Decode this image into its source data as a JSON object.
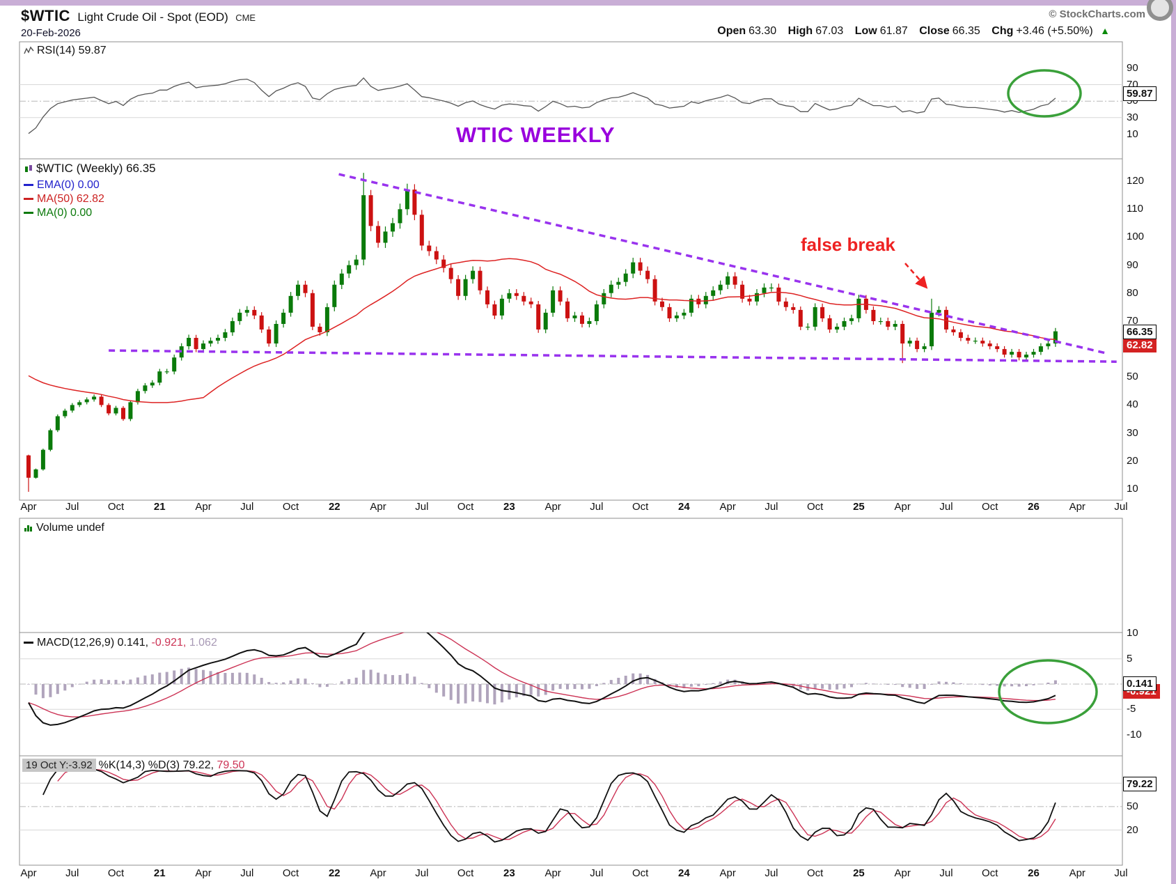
{
  "header": {
    "symbol": "$WTIC",
    "title": "Light Crude Oil - Spot (EOD)",
    "exchange": "CME",
    "credit": "© StockCharts.com",
    "date": "20-Feb-2026",
    "quote": {
      "open_label": "Open",
      "open": "63.30",
      "high_label": "High",
      "high": "67.03",
      "low_label": "Low",
      "low": "61.87",
      "close_label": "Close",
      "close": "66.35",
      "chg_label": "Chg",
      "chg": "+3.46 (+5.50%)"
    }
  },
  "panels": {
    "rsi": {
      "label": "RSI(14) 59.87",
      "last_box": "59.87"
    },
    "price": {
      "title": "$WTIC (Weekly) 66.35",
      "ema_label": "EMA(0) 0.00",
      "ma50_label": "MA(50) 62.82",
      "ma0_label": "MA(0) 0.00",
      "close_box": "66.35",
      "ma_box": "62.82"
    },
    "volume": {
      "label": "Volume undef"
    },
    "macd": {
      "name": "MACD(12,26,9)",
      "v1": "0.141,",
      "v2": "-0.921,",
      "v3": "1.062",
      "last_box": "0.141",
      "signal_box": "-0.921"
    },
    "stoch": {
      "tooltip": "19 Oct Y:-3.92",
      "name": "%K(14,3) %D(3)",
      "v1": "79.22,",
      "v2": "79.50",
      "last_box": "79.22"
    }
  },
  "annotations": {
    "watermark": "WTIC WEEKLY",
    "false_break": "false break"
  },
  "axes": {
    "price_ticks": [
      120,
      110,
      100,
      90,
      80,
      70,
      60,
      50,
      40,
      30,
      20,
      10
    ],
    "rsi_ticks": [
      90,
      70,
      50,
      30,
      10
    ],
    "macd_ticks": [
      10,
      5,
      0,
      -5,
      -10
    ],
    "stoch_ticks": [
      80,
      50,
      20
    ],
    "x_ticks": [
      {
        "m": 0,
        "label": "Apr"
      },
      {
        "m": 3,
        "label": "Jul"
      },
      {
        "m": 6,
        "label": "Oct"
      },
      {
        "m": 9,
        "label": "21",
        "year": true
      },
      {
        "m": 12,
        "label": "Apr"
      },
      {
        "m": 15,
        "label": "Jul"
      },
      {
        "m": 18,
        "label": "Oct"
      },
      {
        "m": 21,
        "label": "22",
        "year": true
      },
      {
        "m": 24,
        "label": "Apr"
      },
      {
        "m": 27,
        "label": "Jul"
      },
      {
        "m": 30,
        "label": "Oct"
      },
      {
        "m": 33,
        "label": "23",
        "year": true
      },
      {
        "m": 36,
        "label": "Apr"
      },
      {
        "m": 39,
        "label": "Jul"
      },
      {
        "m": 42,
        "label": "Oct"
      },
      {
        "m": 45,
        "label": "24",
        "year": true
      },
      {
        "m": 48,
        "label": "Apr"
      },
      {
        "m": 51,
        "label": "Jul"
      },
      {
        "m": 54,
        "label": "Oct"
      },
      {
        "m": 57,
        "label": "25",
        "year": true
      },
      {
        "m": 60,
        "label": "Apr"
      },
      {
        "m": 63,
        "label": "Jul"
      },
      {
        "m": 66,
        "label": "Oct"
      },
      {
        "m": 69,
        "label": "26",
        "year": true
      },
      {
        "m": 72,
        "label": "Apr"
      },
      {
        "m": 75,
        "label": "Jul"
      }
    ]
  },
  "colors": {
    "up": "#0a7a0a",
    "down": "#cc1111",
    "ma50": "#dd2222",
    "rsi_line": "#555555",
    "macd_line": "#111111",
    "signal": "#cc3355",
    "histogram": "#b0a4bc",
    "trendline": "#9933ee",
    "annotation_red": "#ee2222",
    "annotation_purple": "#9900dd",
    "circle_green": "#3aa03a",
    "grid": "#d8d8d8",
    "grid_dashdot": "#b8b8b8",
    "panel_border": "#8f8f8f"
  },
  "chart_data": [
    {
      "id": "price",
      "type": "candlestick",
      "symbol": "$WTIC",
      "timeframe": "weekly (sampled ~2 bars/month)",
      "x_start": "Apr 2020",
      "x_end": "Feb 2026",
      "ylim": [
        6,
        128
      ],
      "last_close": 66.35,
      "ma50_last": 62.82,
      "close": [
        14,
        17,
        24,
        31,
        36,
        38,
        40,
        41,
        42,
        43,
        40,
        37,
        39,
        35,
        41,
        45,
        47,
        48,
        52,
        52,
        57,
        61,
        64,
        60,
        62,
        63,
        64,
        66,
        70,
        73,
        74,
        72,
        67,
        62,
        69,
        73,
        79,
        83,
        80,
        68,
        66,
        75,
        83,
        87,
        90,
        92,
        115,
        104,
        98,
        102,
        105,
        110,
        117,
        108,
        97,
        95,
        92,
        89,
        85,
        79,
        85,
        88,
        81,
        76,
        72,
        78,
        80,
        79,
        77,
        76,
        67,
        73,
        81,
        77,
        71,
        72,
        69,
        70,
        76,
        80,
        83,
        84,
        87,
        91,
        88,
        85,
        77,
        75,
        71,
        72,
        73,
        78,
        76,
        79,
        81,
        83,
        86,
        83,
        78,
        77,
        80,
        82,
        82,
        77,
        75,
        74,
        68,
        68,
        75,
        71,
        67,
        68,
        70,
        71,
        78,
        74,
        70,
        70,
        68,
        69,
        62,
        63,
        60,
        61,
        73,
        74,
        67,
        66,
        64,
        63,
        63,
        62,
        61,
        60,
        58,
        59,
        57,
        58,
        59,
        61,
        62,
        66.35
      ],
      "wick_overrides": [
        {
          "i": 0,
          "low": 9
        },
        {
          "i": 46,
          "high": 123
        },
        {
          "i": 120,
          "low": 55
        },
        {
          "i": 124,
          "high": 78
        }
      ],
      "trendlines": [
        {
          "m1": 21.3,
          "p1": 122.5,
          "m2": 74.0,
          "p2": 58.5
        },
        {
          "m1": 5.5,
          "p1": 59.5,
          "m2": 74.7,
          "p2": 55.5
        }
      ]
    },
    {
      "id": "rsi",
      "type": "line",
      "label": "RSI(14)",
      "last": 59.87,
      "derived": "RSI(14) of price.close",
      "range": [
        0,
        100
      ]
    },
    {
      "id": "volume",
      "type": "bar",
      "label": "Volume undef",
      "values": []
    },
    {
      "id": "macd",
      "type": "line",
      "params": "12,26,9",
      "last_macd": 0.141,
      "last_signal": -0.921,
      "last_hist": 1.062,
      "derived": "MACD(12,26,9) of price.close",
      "ylim": [
        -14.2,
        10.2
      ]
    },
    {
      "id": "stoch",
      "type": "line",
      "params": "%K(14,3) %D(3)",
      "last_k": 79.22,
      "last_d": 79.5,
      "derived": "Full stochastics of price high/low/close",
      "range": [
        0,
        100
      ]
    }
  ]
}
